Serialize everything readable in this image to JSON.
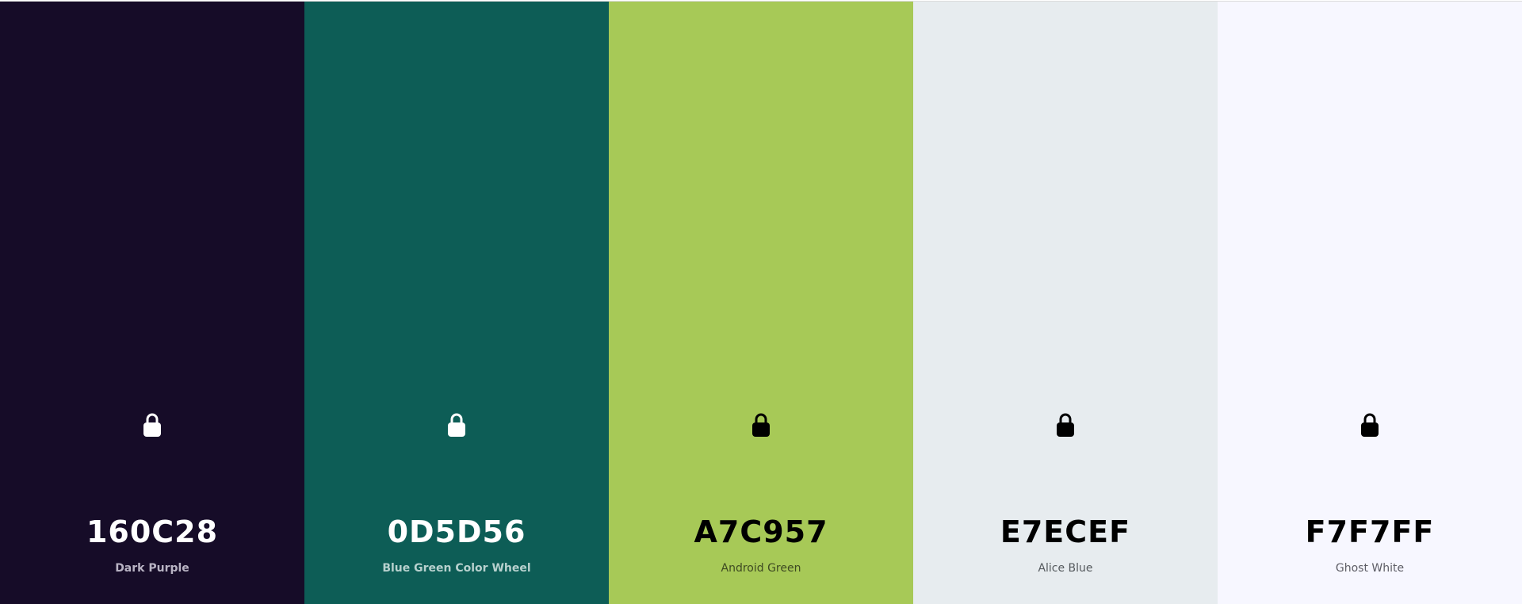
{
  "swatches": [
    {
      "hex": "160C28",
      "name": "Dark Purple",
      "background": "#160C28",
      "text_color": "#FFFFFF",
      "name_color": "#B9B4C4",
      "icon": "lock-icon",
      "icon_color": "#FFFFFF"
    },
    {
      "hex": "0D5D56",
      "name": "Blue Green Color Wheel",
      "background": "#0D5D56",
      "text_color": "#FFFFFF",
      "name_color": "#B7D1CE",
      "icon": "lock-icon",
      "icon_color": "#FFFFFF"
    },
    {
      "hex": "A7C957",
      "name": "Android Green",
      "background": "#A7C957",
      "text_color": "#000000",
      "name_color": "#3E4A22",
      "icon": "lock-icon",
      "icon_color": "#000000"
    },
    {
      "hex": "E7ECEF",
      "name": "Alice Blue",
      "background": "#E7ECEF",
      "text_color": "#000000",
      "name_color": "#555A5E",
      "icon": "lock-icon",
      "icon_color": "#000000"
    },
    {
      "hex": "F7F7FF",
      "name": "Ghost White",
      "background": "#F7F7FF",
      "text_color": "#000000",
      "name_color": "#5E5E66",
      "icon": "lock-icon",
      "icon_color": "#000000"
    }
  ]
}
